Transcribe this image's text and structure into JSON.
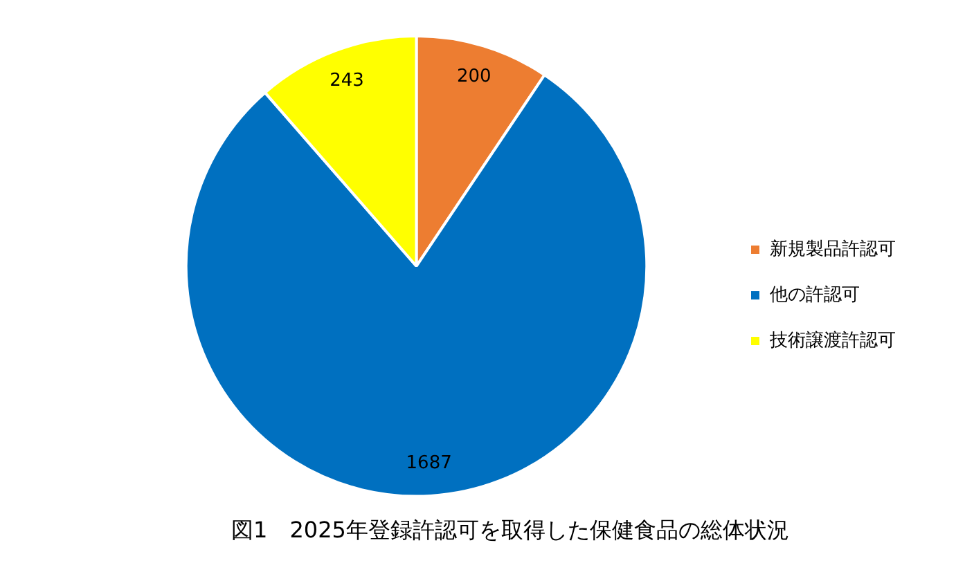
{
  "chart_data": {
    "type": "pie",
    "title": "図1　2025年登録許認可を取得した保健食品の総体状況",
    "categories": [
      "新規製品許認可",
      "他の許認可",
      "技術譲渡許認可"
    ],
    "values": [
      200,
      1687,
      243
    ],
    "colors": [
      "#ed7d31",
      "#0070c0",
      "#ffff00"
    ],
    "data_labels": true,
    "legend": "right"
  }
}
